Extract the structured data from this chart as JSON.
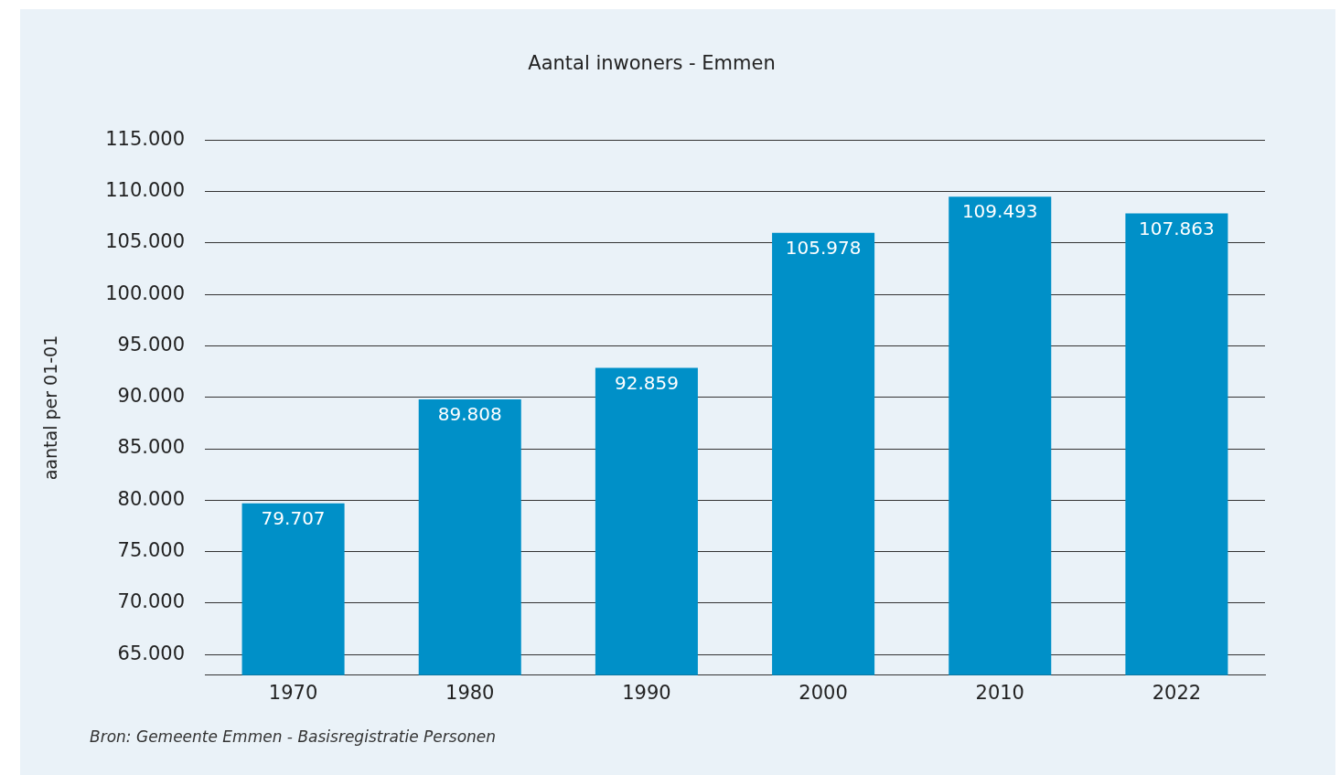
{
  "chart_data": {
    "type": "bar",
    "title": "Aantal inwoners - Emmen",
    "ylabel": "aantal per 01-01",
    "categories": [
      "1970",
      "1980",
      "1990",
      "2000",
      "2010",
      "2022"
    ],
    "values": [
      79707,
      89808,
      92859,
      105978,
      109493,
      107863
    ],
    "value_labels": [
      "79.707",
      "89.808",
      "92.859",
      "105.978",
      "109.493",
      "107.863"
    ],
    "color": "#0090c8",
    "ylim": [
      63000,
      115000
    ],
    "yticks": [
      {
        "value": 65000,
        "label": "65.000"
      },
      {
        "value": 70000,
        "label": "70.000"
      },
      {
        "value": 75000,
        "label": "75.000"
      },
      {
        "value": 80000,
        "label": "80.000"
      },
      {
        "value": 85000,
        "label": "85.000"
      },
      {
        "value": 90000,
        "label": "90.000"
      },
      {
        "value": 95000,
        "label": "95.000"
      },
      {
        "value": 100000,
        "label": "100.000"
      },
      {
        "value": 105000,
        "label": "105.000"
      },
      {
        "value": 110000,
        "label": "110.000"
      },
      {
        "value": 115000,
        "label": "115.000"
      }
    ],
    "grid": "y",
    "legend": false,
    "annotations": [
      "Bron: Gemeente Emmen - Basisregistratie Personen"
    ]
  }
}
